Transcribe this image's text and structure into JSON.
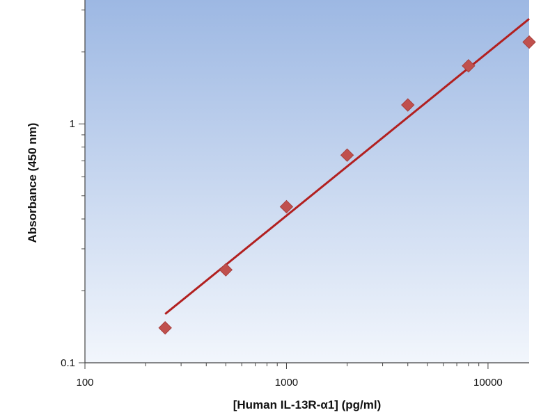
{
  "chart_data": {
    "type": "scatter",
    "title": "",
    "xlabel": "[Human IL-13R-α1] (pg/ml)",
    "ylabel": "Absorbance (450 nm)",
    "x_scale": "log",
    "y_scale": "log",
    "xlim": [
      100,
      16000
    ],
    "ylim": [
      0.1,
      3.3
    ],
    "x_tick_labels": [
      {
        "value": 100,
        "label": "100"
      },
      {
        "value": 1000,
        "label": "1000"
      },
      {
        "value": 10000,
        "label": "10000"
      }
    ],
    "y_tick_labels": [
      {
        "value": 0.1,
        "label": "0.1"
      },
      {
        "value": 1,
        "label": "1"
      }
    ],
    "grid": false,
    "legend": "none",
    "points": [
      {
        "x": 250,
        "y": 0.14
      },
      {
        "x": 500,
        "y": 0.245
      },
      {
        "x": 1000,
        "y": 0.45
      },
      {
        "x": 2000,
        "y": 0.74
      },
      {
        "x": 4000,
        "y": 1.2
      },
      {
        "x": 8000,
        "y": 1.75
      },
      {
        "x": 16000,
        "y": 2.2
      }
    ],
    "fit_line": {
      "x": [
        250,
        16000
      ],
      "y": [
        0.16,
        2.75
      ]
    },
    "colors": {
      "marker": "#c0504d",
      "fit_line": "#b22020",
      "plot_bg_top": "#9db8e3",
      "plot_bg_bottom": "#f2f6fc"
    }
  }
}
